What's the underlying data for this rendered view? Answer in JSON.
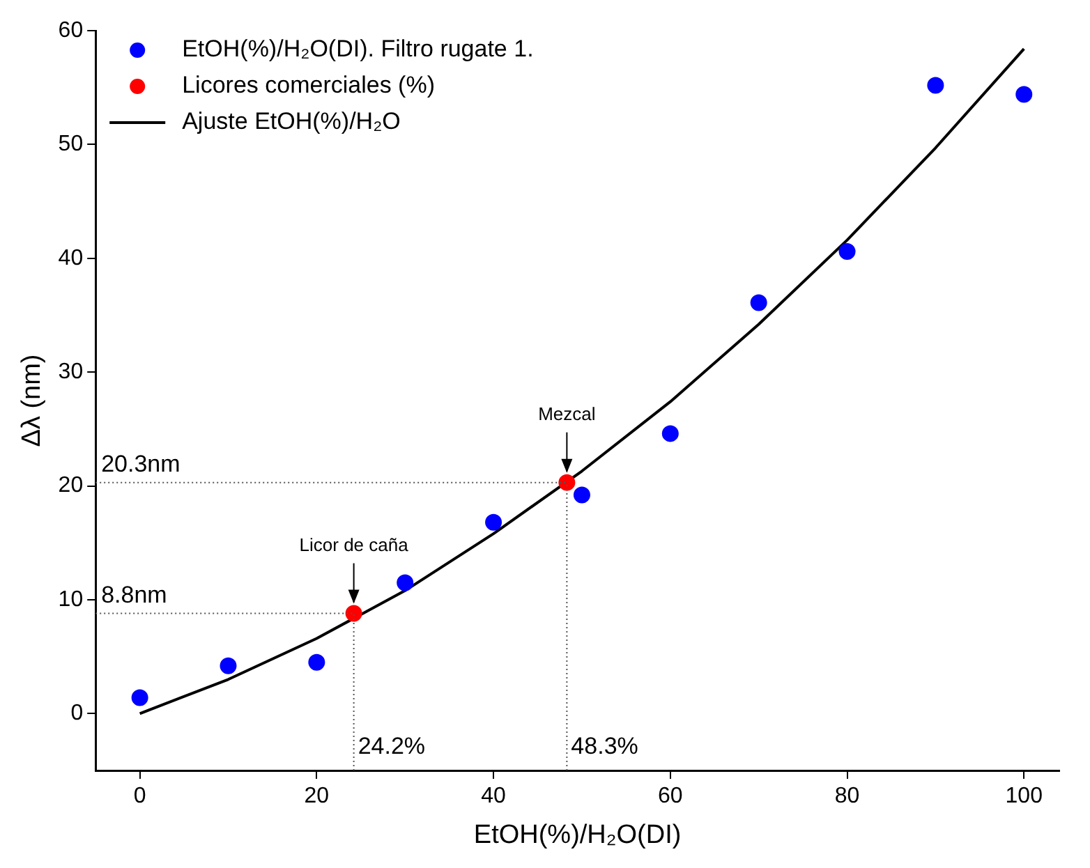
{
  "chart_data": {
    "type": "scatter",
    "xlabel": "EtOH(%)/H₂O(DI)",
    "ylabel": "Δλ (nm)",
    "xlim": [
      -5,
      104
    ],
    "ylim": [
      -5,
      60
    ],
    "xticks": [
      0,
      20,
      40,
      60,
      80,
      100
    ],
    "yticks": [
      0,
      10,
      20,
      30,
      40,
      50,
      60
    ],
    "grid": false,
    "legend": "top left",
    "series": [
      {
        "name": "EtOH(%)/H₂O(DI). Filtro rugate 1.",
        "marker": "circle",
        "color": "#0000ff",
        "x": [
          0,
          10,
          20,
          30,
          40,
          50,
          60,
          70,
          80,
          90,
          100
        ],
        "values": [
          1.4,
          4.2,
          4.5,
          11.5,
          16.8,
          19.2,
          24.6,
          36.1,
          40.6,
          55.2,
          54.4
        ]
      },
      {
        "name": "Licores comerciales (%)",
        "marker": "circle",
        "color": "#ff0000",
        "x": [
          24.2,
          48.3
        ],
        "values": [
          8.8,
          20.3
        ]
      },
      {
        "name": "Ajuste EtOH(%)/H₂O",
        "type": "line",
        "marker": "none",
        "color": "#000000",
        "line_style": "solid",
        "x": [
          0,
          10,
          20,
          30,
          40,
          50,
          60,
          70,
          80,
          90,
          100
        ],
        "values": [
          0,
          3.0,
          6.6,
          10.8,
          15.8,
          21.3,
          27.4,
          34.2,
          41.6,
          49.7,
          58.4
        ]
      }
    ],
    "ref_lines": [
      {
        "axis": "y",
        "value": 20.3,
        "label": "20.3nm",
        "line_style": "dotted"
      },
      {
        "axis": "y",
        "value": 8.8,
        "label": "8.8nm",
        "line_style": "dotted"
      },
      {
        "axis": "x",
        "value": 24.2,
        "label": "24.2%",
        "line_style": "dotted"
      },
      {
        "axis": "x",
        "value": 48.3,
        "label": "48.3%",
        "line_style": "dotted"
      }
    ],
    "annotations": [
      {
        "text": "Licor de caña",
        "x": 24.2,
        "y": 8.8
      },
      {
        "text": "Mezcal",
        "x": 48.3,
        "y": 20.3
      }
    ]
  }
}
